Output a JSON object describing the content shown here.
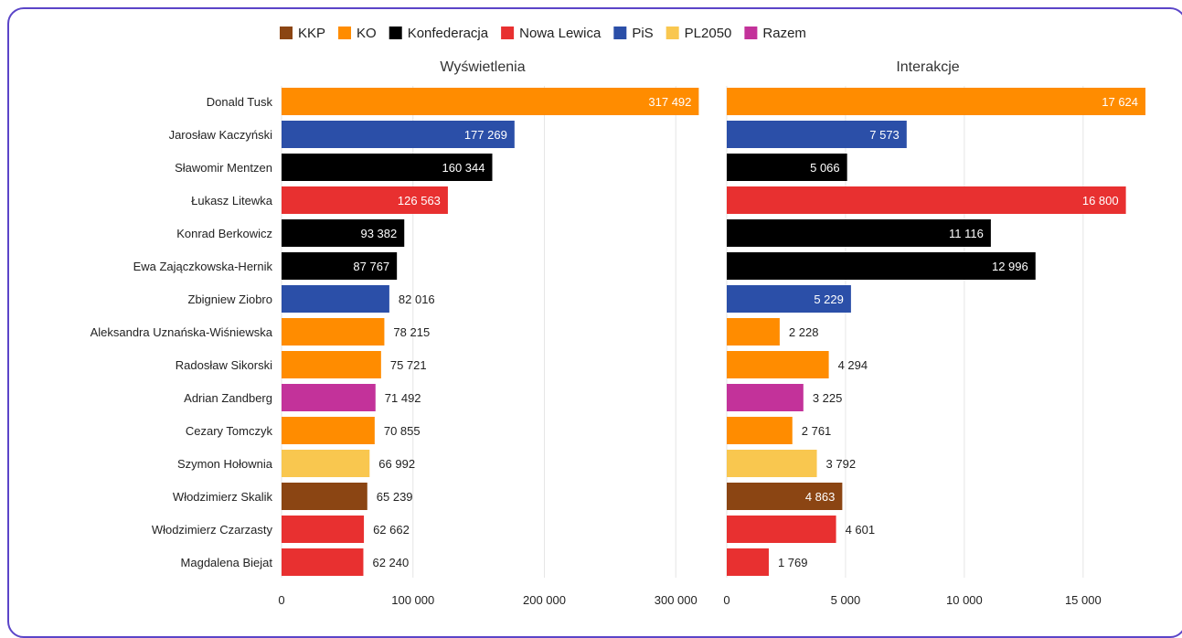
{
  "colors": {
    "KKP": "#8b4513",
    "KO": "#ff8c00",
    "Konfederacja": "#000000",
    "Nowa Lewica": "#e83030",
    "PiS": "#2b4fa8",
    "PL2050": "#f9c74f",
    "Razem": "#c3329a"
  },
  "chart_data": {
    "type": "bar",
    "orientation": "horizontal",
    "legend": [
      "KKP",
      "KO",
      "Konfederacja",
      "Nowa Lewica",
      "PiS",
      "PL2050",
      "Razem"
    ],
    "legend_position": "top",
    "grid": true,
    "categories": [
      "Donald Tusk",
      "Jarosław Kaczyński",
      "Sławomir Mentzen",
      "Łukasz Litewka",
      "Konrad Berkowicz",
      "Ewa Zajączkowska-Hernik",
      "Zbigniew Ziobro",
      "Aleksandra Uznańska-Wiśniewska",
      "Radosław Sikorski",
      "Adrian Zandberg",
      "Cezary Tomczyk",
      "Szymon Hołownia",
      "Włodzimierz Skalik",
      "Włodzimierz Czarzasty",
      "Magdalena Biejat"
    ],
    "party": [
      "KO",
      "PiS",
      "Konfederacja",
      "Nowa Lewica",
      "Konfederacja",
      "Konfederacja",
      "PiS",
      "KO",
      "KO",
      "Razem",
      "KO",
      "PL2050",
      "KKP",
      "Nowa Lewica",
      "Nowa Lewica"
    ],
    "panels": [
      {
        "title": "Wyświetlenia",
        "values": [
          317492,
          177269,
          160344,
          126563,
          93382,
          87767,
          82016,
          78215,
          75721,
          71492,
          70855,
          66992,
          65239,
          62662,
          62240
        ],
        "labels": [
          "317 492",
          "177 269",
          "160 344",
          "126 563",
          "93 382",
          "87 767",
          "82 016",
          "78 215",
          "75 721",
          "71 492",
          "70 855",
          "66 992",
          "65 239",
          "62 662",
          "62 240"
        ],
        "xlim": [
          0,
          320000
        ],
        "ticks": [
          0,
          100000,
          200000,
          300000
        ],
        "tick_labels": [
          "0",
          "100 000",
          "200 000",
          "300 000"
        ]
      },
      {
        "title": "Interakcje",
        "values": [
          17624,
          7573,
          5066,
          16800,
          11116,
          12996,
          5229,
          2228,
          4294,
          3225,
          2761,
          3792,
          4863,
          4601,
          1769
        ],
        "labels": [
          "17 624",
          "7 573",
          "5 066",
          "16 800",
          "11 116",
          "12 996",
          "5 229",
          "2 228",
          "4 294",
          "3 225",
          "2 761",
          "3 792",
          "4 863",
          "4 601",
          "1 769"
        ],
        "xlim": [
          0,
          17700
        ],
        "ticks": [
          0,
          5000,
          10000,
          15000
        ],
        "tick_labels": [
          "0",
          "5 000",
          "10 000",
          "15 000"
        ]
      }
    ]
  }
}
